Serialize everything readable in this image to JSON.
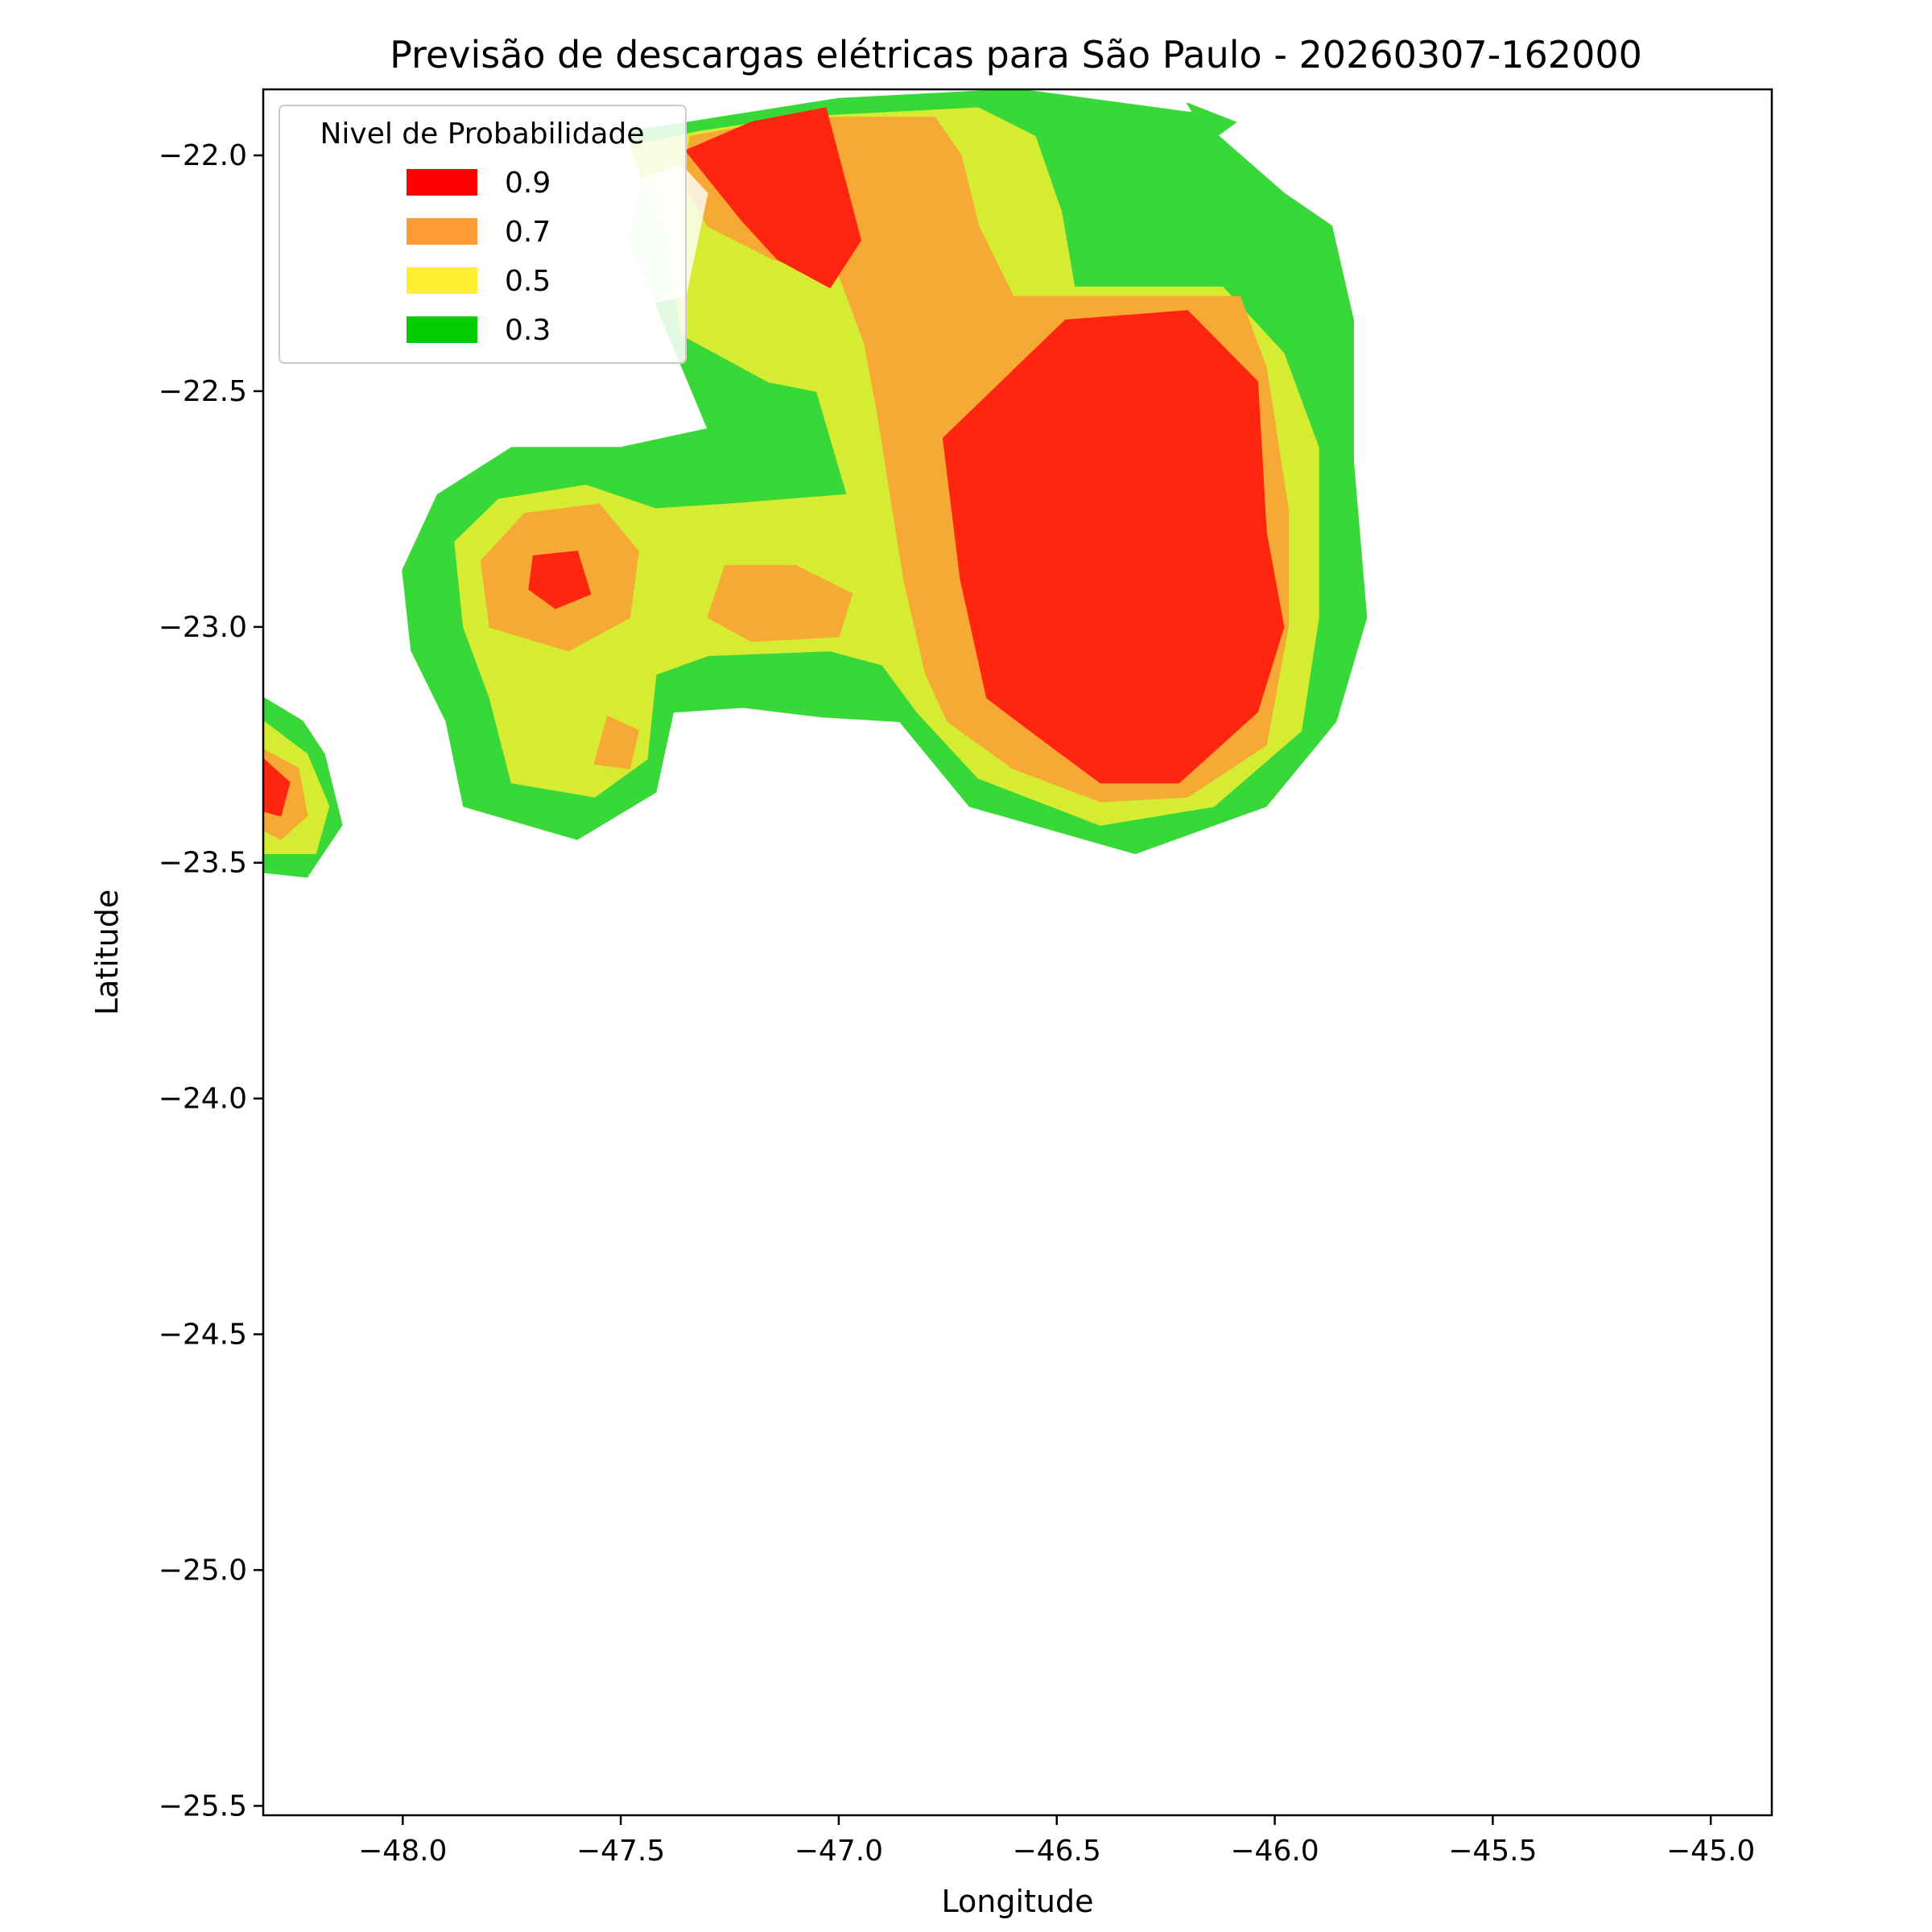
{
  "chart_data": {
    "type": "contourf",
    "title": "Previsão de descargas elétricas para São Paulo - 20260307-162000",
    "xlabel": "Longitude",
    "ylabel": "Latitude",
    "xlim": [
      -48.32,
      -44.86
    ],
    "ylim": [
      -25.52,
      -21.86
    ],
    "xticks": [
      -48.0,
      -47.5,
      -47.0,
      -46.5,
      -46.0,
      -45.5,
      -45.0
    ],
    "yticks": [
      -22.0,
      -22.5,
      -23.0,
      -23.5,
      -24.0,
      -24.5,
      -25.0,
      -25.5
    ],
    "xtick_labels": [
      "−48.0",
      "−47.5",
      "−47.0",
      "−46.5",
      "−46.0",
      "−45.5",
      "−45.0"
    ],
    "ytick_labels": [
      "−22.0",
      "−22.5",
      "−23.0",
      "−23.5",
      "−24.0",
      "−24.5",
      "−25.0",
      "−25.5"
    ],
    "legend": {
      "title": "Nivel de Probabilidade",
      "placement": "upper left",
      "entries": [
        {
          "label": "0.9",
          "color": "#ff0000"
        },
        {
          "label": "0.7",
          "color": "#ff9933"
        },
        {
          "label": "0.5",
          "color": "#ffee33"
        },
        {
          "label": "0.3",
          "color": "#00cc00"
        }
      ]
    },
    "level_fill_colors": {
      "0.3": "#38d838",
      "0.5": "#d5ec32",
      "0.7": "#f6a934",
      "0.9": "#ff2610"
    },
    "regions": [
      {
        "level": "0.3",
        "polygons": [
          [
            [
              -47.48,
              -21.95
            ],
            [
              -47.0,
              -21.88
            ],
            [
              -46.59,
              -21.86
            ],
            [
              -46.19,
              -21.91
            ],
            [
              -45.98,
              -22.08
            ],
            [
              -45.87,
              -22.15
            ],
            [
              -45.82,
              -22.35
            ],
            [
              -45.82,
              -22.65
            ],
            [
              -45.79,
              -22.98
            ],
            [
              -45.86,
              -23.2
            ],
            [
              -46.02,
              -23.38
            ],
            [
              -46.32,
              -23.48
            ],
            [
              -46.7,
              -23.38
            ],
            [
              -46.86,
              -23.2
            ],
            [
              -47.04,
              -23.19
            ],
            [
              -47.22,
              -23.17
            ],
            [
              -47.38,
              -23.18
            ],
            [
              -47.42,
              -23.35
            ],
            [
              -47.6,
              -23.45
            ],
            [
              -47.86,
              -23.38
            ],
            [
              -47.9,
              -23.2
            ],
            [
              -47.98,
              -23.05
            ],
            [
              -48.0,
              -22.88
            ],
            [
              -47.92,
              -22.72
            ],
            [
              -47.75,
              -22.62
            ],
            [
              -47.5,
              -22.62
            ],
            [
              -47.3,
              -22.58
            ],
            [
              -47.48,
              -22.18
            ],
            [
              -47.45,
              -22.05
            ]
          ],
          [
            [
              -48.32,
              -23.15
            ],
            [
              -48.23,
              -23.2
            ],
            [
              -48.18,
              -23.27
            ],
            [
              -48.14,
              -23.42
            ],
            [
              -48.22,
              -23.53
            ],
            [
              -48.32,
              -23.52
            ]
          ],
          [
            [
              -46.2,
              -21.89
            ],
            [
              -46.09,
              -21.93
            ],
            [
              -46.15,
              -21.97
            ],
            [
              -46.18,
              -21.92
            ]
          ]
        ]
      },
      {
        "level": "0.5",
        "polygons": [
          [
            [
              -47.48,
              -21.98
            ],
            [
              -47.32,
              -21.95
            ],
            [
              -47.1,
              -21.92
            ],
            [
              -46.68,
              -21.9
            ],
            [
              -46.55,
              -21.96
            ],
            [
              -46.49,
              -22.12
            ],
            [
              -46.46,
              -22.28
            ],
            [
              -46.12,
              -22.28
            ],
            [
              -45.98,
              -22.42
            ],
            [
              -45.9,
              -22.62
            ],
            [
              -45.9,
              -22.98
            ],
            [
              -45.94,
              -23.22
            ],
            [
              -46.14,
              -23.38
            ],
            [
              -46.4,
              -23.42
            ],
            [
              -46.68,
              -23.32
            ],
            [
              -46.82,
              -23.18
            ],
            [
              -46.9,
              -23.08
            ],
            [
              -47.02,
              -23.05
            ],
            [
              -47.3,
              -23.06
            ],
            [
              -47.42,
              -23.1
            ],
            [
              -47.44,
              -23.28
            ],
            [
              -47.56,
              -23.36
            ],
            [
              -47.75,
              -23.33
            ],
            [
              -47.8,
              -23.15
            ],
            [
              -47.86,
              -23.0
            ],
            [
              -47.88,
              -22.82
            ],
            [
              -47.78,
              -22.73
            ],
            [
              -47.58,
              -22.7
            ],
            [
              -47.42,
              -22.75
            ],
            [
              -47.25,
              -22.74
            ],
            [
              -46.98,
              -22.72
            ],
            [
              -47.05,
              -22.5
            ],
            [
              -47.16,
              -22.48
            ],
            [
              -47.36,
              -22.38
            ],
            [
              -47.4,
              -22.14
            ]
          ],
          [
            [
              -48.32,
              -23.2
            ],
            [
              -48.22,
              -23.27
            ],
            [
              -48.17,
              -23.38
            ],
            [
              -48.2,
              -23.48
            ],
            [
              -48.32,
              -23.48
            ]
          ]
        ]
      },
      {
        "level": "0.7",
        "polygons": [
          [
            [
              -47.34,
              -21.96
            ],
            [
              -47.1,
              -21.92
            ],
            [
              -46.78,
              -21.92
            ],
            [
              -46.72,
              -22.0
            ],
            [
              -46.68,
              -22.15
            ],
            [
              -46.6,
              -22.3
            ],
            [
              -46.35,
              -22.3
            ],
            [
              -46.08,
              -22.3
            ],
            [
              -46.02,
              -22.45
            ],
            [
              -45.97,
              -22.75
            ],
            [
              -45.97,
              -23.0
            ],
            [
              -46.02,
              -23.25
            ],
            [
              -46.2,
              -23.36
            ],
            [
              -46.4,
              -23.37
            ],
            [
              -46.6,
              -23.3
            ],
            [
              -46.75,
              -23.2
            ],
            [
              -46.8,
              -23.1
            ],
            [
              -46.85,
              -22.9
            ],
            [
              -46.91,
              -22.55
            ],
            [
              -46.94,
              -22.4
            ],
            [
              -47.0,
              -22.25
            ],
            [
              -47.15,
              -22.22
            ],
            [
              -47.3,
              -22.15
            ],
            [
              -47.36,
              -22.05
            ]
          ],
          [
            [
              -47.82,
              -22.86
            ],
            [
              -47.72,
              -22.76
            ],
            [
              -47.55,
              -22.74
            ],
            [
              -47.46,
              -22.84
            ],
            [
              -47.48,
              -22.98
            ],
            [
              -47.62,
              -23.05
            ],
            [
              -47.8,
              -23.0
            ]
          ],
          [
            [
              -47.26,
              -22.87
            ],
            [
              -47.1,
              -22.87
            ],
            [
              -46.97,
              -22.93
            ],
            [
              -47.0,
              -23.02
            ],
            [
              -47.2,
              -23.03
            ],
            [
              -47.3,
              -22.98
            ]
          ],
          [
            [
              -47.53,
              -23.19
            ],
            [
              -47.46,
              -23.22
            ],
            [
              -47.48,
              -23.3
            ],
            [
              -47.56,
              -23.29
            ]
          ],
          [
            [
              -48.32,
              -23.26
            ],
            [
              -48.24,
              -23.3
            ],
            [
              -48.22,
              -23.4
            ],
            [
              -48.28,
              -23.45
            ],
            [
              -48.32,
              -23.43
            ]
          ]
        ]
      },
      {
        "level": "0.9",
        "polygons": [
          [
            [
              -47.35,
              -21.99
            ],
            [
              -47.2,
              -21.93
            ],
            [
              -47.03,
              -21.9
            ],
            [
              -46.95,
              -22.18
            ],
            [
              -47.02,
              -22.28
            ],
            [
              -47.14,
              -22.22
            ],
            [
              -47.22,
              -22.14
            ]
          ],
          [
            [
              -46.48,
              -22.35
            ],
            [
              -46.2,
              -22.33
            ],
            [
              -46.04,
              -22.48
            ],
            [
              -46.02,
              -22.8
            ],
            [
              -45.98,
              -23.0
            ],
            [
              -46.04,
              -23.18
            ],
            [
              -46.22,
              -23.33
            ],
            [
              -46.4,
              -23.33
            ],
            [
              -46.56,
              -23.22
            ],
            [
              -46.66,
              -23.15
            ],
            [
              -46.72,
              -22.9
            ],
            [
              -46.76,
              -22.6
            ]
          ],
          [
            [
              -47.7,
              -22.85
            ],
            [
              -47.6,
              -22.84
            ],
            [
              -47.57,
              -22.93
            ],
            [
              -47.65,
              -22.96
            ],
            [
              -47.71,
              -22.92
            ]
          ],
          [
            [
              -48.32,
              -23.28
            ],
            [
              -48.26,
              -23.33
            ],
            [
              -48.28,
              -23.4
            ],
            [
              -48.32,
              -23.39
            ]
          ]
        ]
      }
    ],
    "overlay_patch": {
      "color": "#ffffff",
      "opacity": 0.8,
      "polygon": [
        [
          -47.56,
          -22.13
        ],
        [
          -47.49,
          -22.06
        ],
        [
          -47.36,
          -22.02
        ],
        [
          -47.3,
          -22.08
        ],
        [
          -47.35,
          -22.3
        ],
        [
          -47.46,
          -22.32
        ],
        [
          -47.52,
          -22.2
        ]
      ]
    }
  }
}
